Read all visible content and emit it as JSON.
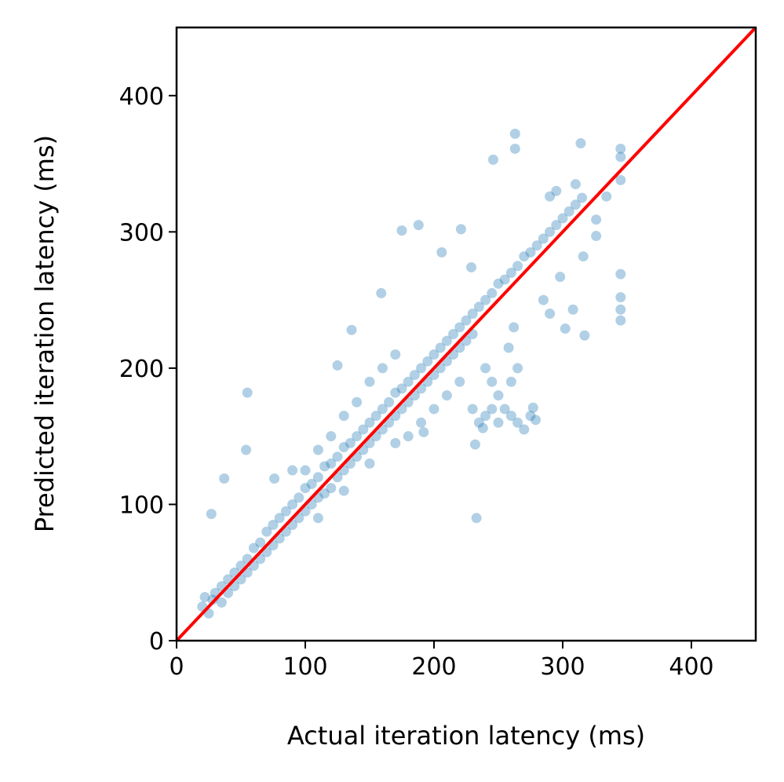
{
  "chart_data": {
    "type": "scatter",
    "title": "",
    "xlabel": "Actual iteration latency (ms)",
    "ylabel": "Predicted iteration latency (ms)",
    "xlim": [
      0,
      450
    ],
    "ylim": [
      0,
      450
    ],
    "xticks": [
      0,
      100,
      200,
      300,
      400
    ],
    "yticks": [
      0,
      100,
      200,
      300,
      400
    ],
    "xtick_labels": [
      "0",
      "100",
      "200",
      "300",
      "400"
    ],
    "ytick_labels": [
      "0",
      "100",
      "200",
      "300",
      "400"
    ],
    "grid": false,
    "point_color": "#1f77b4",
    "point_alpha": 0.2,
    "reference_line": {
      "label": "y = x",
      "color": "#ff0000",
      "from": [
        0,
        0
      ],
      "to": [
        450,
        450
      ]
    },
    "points": [
      [
        20,
        25
      ],
      [
        22,
        32
      ],
      [
        25,
        20
      ],
      [
        28,
        30
      ],
      [
        30,
        35
      ],
      [
        35,
        28
      ],
      [
        35,
        40
      ],
      [
        40,
        45
      ],
      [
        40,
        35
      ],
      [
        45,
        50
      ],
      [
        45,
        40
      ],
      [
        50,
        55
      ],
      [
        50,
        45
      ],
      [
        55,
        60
      ],
      [
        55,
        50
      ],
      [
        60,
        68
      ],
      [
        60,
        55
      ],
      [
        65,
        72
      ],
      [
        65,
        60
      ],
      [
        70,
        80
      ],
      [
        70,
        65
      ],
      [
        75,
        85
      ],
      [
        75,
        70
      ],
      [
        80,
        90
      ],
      [
        80,
        75
      ],
      [
        85,
        95
      ],
      [
        85,
        80
      ],
      [
        90,
        100
      ],
      [
        90,
        85
      ],
      [
        95,
        105
      ],
      [
        95,
        90
      ],
      [
        100,
        112
      ],
      [
        100,
        95
      ],
      [
        100,
        125
      ],
      [
        105,
        115
      ],
      [
        105,
        100
      ],
      [
        110,
        120
      ],
      [
        110,
        105
      ],
      [
        115,
        128
      ],
      [
        115,
        108
      ],
      [
        120,
        130
      ],
      [
        120,
        112
      ],
      [
        125,
        135
      ],
      [
        125,
        120
      ],
      [
        130,
        142
      ],
      [
        130,
        125
      ],
      [
        135,
        145
      ],
      [
        135,
        130
      ],
      [
        140,
        150
      ],
      [
        140,
        135
      ],
      [
        145,
        155
      ],
      [
        145,
        140
      ],
      [
        150,
        160
      ],
      [
        150,
        145
      ],
      [
        155,
        165
      ],
      [
        155,
        150
      ],
      [
        160,
        170
      ],
      [
        160,
        155
      ],
      [
        165,
        175
      ],
      [
        165,
        160
      ],
      [
        170,
        182
      ],
      [
        170,
        165
      ],
      [
        175,
        185
      ],
      [
        175,
        170
      ],
      [
        180,
        190
      ],
      [
        180,
        175
      ],
      [
        185,
        195
      ],
      [
        185,
        180
      ],
      [
        190,
        200
      ],
      [
        190,
        185
      ],
      [
        195,
        205
      ],
      [
        195,
        190
      ],
      [
        200,
        210
      ],
      [
        200,
        195
      ],
      [
        205,
        215
      ],
      [
        205,
        200
      ],
      [
        210,
        220
      ],
      [
        210,
        205
      ],
      [
        215,
        225
      ],
      [
        215,
        210
      ],
      [
        220,
        230
      ],
      [
        220,
        215
      ],
      [
        225,
        235
      ],
      [
        225,
        220
      ],
      [
        230,
        240
      ],
      [
        230,
        225
      ],
      [
        235,
        245
      ],
      [
        240,
        250
      ],
      [
        245,
        255
      ],
      [
        250,
        262
      ],
      [
        255,
        265
      ],
      [
        260,
        270
      ],
      [
        265,
        275
      ],
      [
        270,
        282
      ],
      [
        275,
        285
      ],
      [
        280,
        290
      ],
      [
        285,
        295
      ],
      [
        290,
        300
      ],
      [
        295,
        305
      ],
      [
        300,
        310
      ],
      [
        305,
        315
      ],
      [
        310,
        320
      ],
      [
        315,
        325
      ],
      [
        240,
        200
      ],
      [
        245,
        190
      ],
      [
        250,
        180
      ],
      [
        255,
        170
      ],
      [
        260,
        165
      ],
      [
        265,
        160
      ],
      [
        270,
        155
      ],
      [
        275,
        165
      ],
      [
        235,
        160
      ],
      [
        240,
        165
      ],
      [
        245,
        170
      ],
      [
        250,
        160
      ],
      [
        230,
        170
      ],
      [
        260,
        190
      ],
      [
        265,
        200
      ],
      [
        258,
        215
      ],
      [
        262,
        230
      ],
      [
        150,
        190
      ],
      [
        160,
        200
      ],
      [
        170,
        210
      ],
      [
        140,
        175
      ],
      [
        120,
        150
      ],
      [
        110,
        140
      ],
      [
        90,
        125
      ],
      [
        130,
        165
      ],
      [
        180,
        150
      ],
      [
        190,
        160
      ],
      [
        200,
        170
      ],
      [
        210,
        180
      ],
      [
        220,
        190
      ],
      [
        110,
        90
      ],
      [
        130,
        110
      ],
      [
        150,
        130
      ],
      [
        170,
        145
      ],
      [
        285,
        250
      ],
      [
        290,
        240
      ],
      [
        295,
        330
      ],
      [
        310,
        335
      ],
      [
        263,
        372
      ],
      [
        263,
        361
      ],
      [
        246,
        353
      ],
      [
        314,
        365
      ],
      [
        345,
        361
      ],
      [
        345,
        355
      ],
      [
        345,
        338
      ],
      [
        345,
        269
      ],
      [
        345,
        252
      ],
      [
        345,
        243
      ],
      [
        345,
        235
      ],
      [
        233,
        90
      ],
      [
        55,
        182
      ],
      [
        54,
        140
      ],
      [
        27,
        93
      ],
      [
        175,
        301
      ],
      [
        188,
        305
      ],
      [
        221,
        302
      ],
      [
        316,
        282
      ],
      [
        326,
        297
      ],
      [
        302,
        229
      ],
      [
        317,
        224
      ],
      [
        308,
        243
      ],
      [
        277,
        171
      ],
      [
        279,
        162
      ],
      [
        192,
        153
      ],
      [
        125,
        202
      ],
      [
        159,
        255
      ],
      [
        232,
        144
      ],
      [
        238,
        156
      ],
      [
        136,
        228
      ],
      [
        37,
        119
      ],
      [
        76,
        119
      ],
      [
        206,
        285
      ],
      [
        229,
        274
      ],
      [
        298,
        267
      ],
      [
        290,
        326
      ],
      [
        334,
        326
      ],
      [
        326,
        309
      ]
    ]
  }
}
